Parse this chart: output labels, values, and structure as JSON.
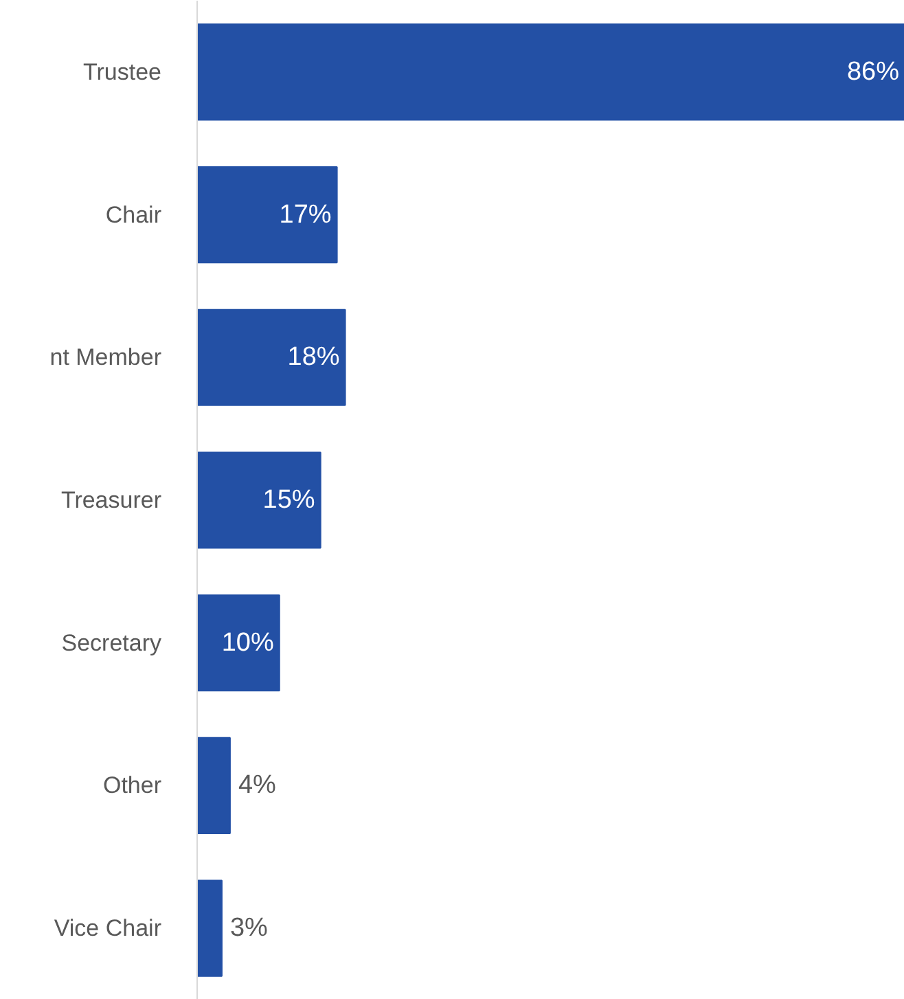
{
  "chart_data": {
    "type": "bar",
    "orientation": "horizontal",
    "categories": [
      "Trustee",
      "Chair",
      "nt Member",
      "Treasurer",
      "Secretary",
      "Other",
      "Vice Chair"
    ],
    "values": [
      86,
      17,
      18,
      15,
      10,
      4,
      3
    ],
    "value_labels": [
      "86%",
      "17%",
      "18%",
      "15%",
      "10%",
      "4%",
      "3%"
    ],
    "color": "#2350a5",
    "grid": false
  }
}
